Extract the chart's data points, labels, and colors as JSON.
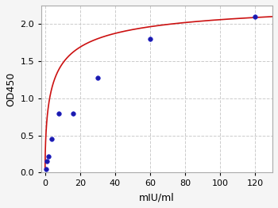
{
  "x_points": [
    0.5,
    1.0,
    2.0,
    4.0,
    8.0,
    16.0,
    30.0,
    60.0,
    120.0
  ],
  "y_points": [
    0.05,
    0.16,
    0.22,
    0.45,
    0.8,
    0.8,
    1.28,
    1.8,
    2.1
  ],
  "xlabel": "mIU/ml",
  "ylabel": "OD450",
  "xlim": [
    -2,
    130
  ],
  "ylim": [
    0.0,
    2.25
  ],
  "xticks": [
    0,
    20,
    40,
    60,
    80,
    100,
    120
  ],
  "yticks": [
    0.0,
    0.5,
    1.0,
    1.5,
    2.0
  ],
  "dot_color": "#1a1aaa",
  "dot_edgecolor": "#2222cc",
  "line_color": "#cc1111",
  "background_color": "#f5f5f5",
  "plot_bg_color": "#ffffff",
  "grid_color": "#cccccc",
  "curve_Vmax": 2.38,
  "curve_Km": 4.5,
  "curve_n": 0.6
}
